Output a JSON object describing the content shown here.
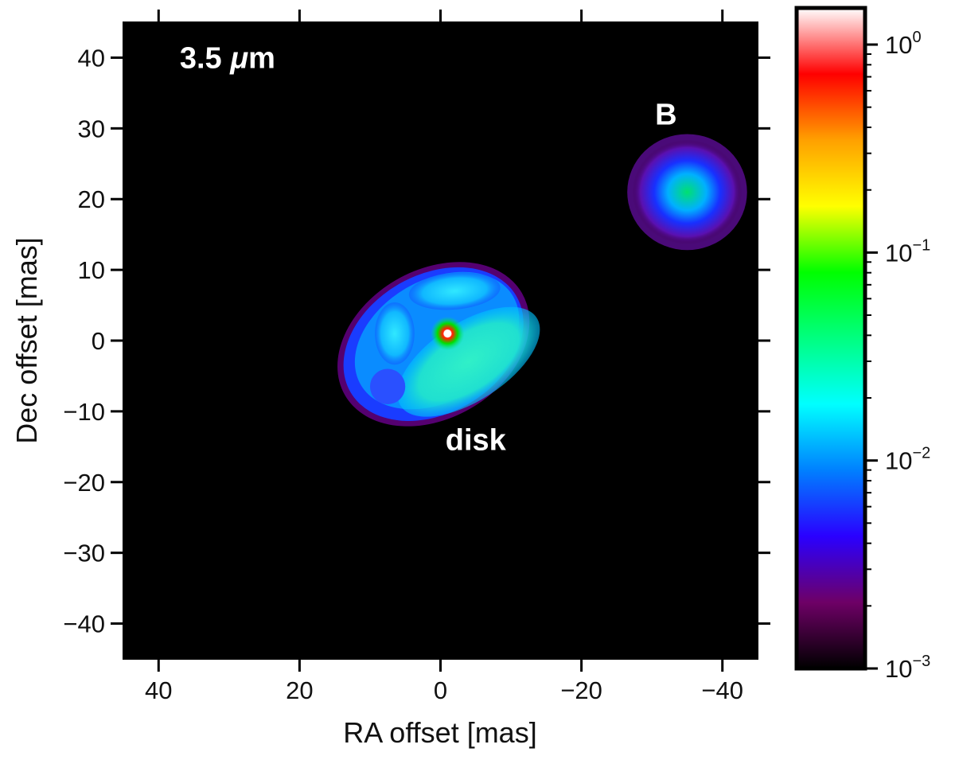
{
  "chart_data": {
    "type": "heatmap",
    "title": "",
    "xlabel": "RA offset [mas]",
    "ylabel": "Dec offset [mas]",
    "xlim": [
      45,
      -45
    ],
    "ylim": [
      -45,
      45
    ],
    "x_ticks": [
      40,
      20,
      0,
      -20,
      -40
    ],
    "x_tick_labels": [
      "40",
      "20",
      "0",
      "−20",
      "−40"
    ],
    "y_ticks": [
      40,
      30,
      20,
      10,
      0,
      -10,
      -20,
      -30,
      -40
    ],
    "y_tick_labels": [
      "40",
      "30",
      "20",
      "10",
      "0",
      "−10",
      "−20",
      "−30",
      "−40"
    ],
    "background": "#000000",
    "annotations": [
      {
        "text": "3.5",
        "unit": "μm",
        "x": 37,
        "y": 40
      },
      {
        "text": "B",
        "x": -32,
        "y": 32
      },
      {
        "text": "disk",
        "x": -5,
        "y": -14
      }
    ],
    "colorbar": {
      "scale": "log",
      "range": [
        0.001,
        1.5
      ],
      "ticks": [
        {
          "base": "10",
          "exponent": "0",
          "value": 1
        },
        {
          "base": "10",
          "exponent": "−1",
          "value": 0.1
        },
        {
          "base": "10",
          "exponent": "−2",
          "value": 0.01
        },
        {
          "base": "10",
          "exponent": "−3",
          "value": 0.001
        }
      ],
      "colormap": [
        "#000000",
        "#6e0066",
        "#2a00ff",
        "#0080ff",
        "#00ffff",
        "#00ff80",
        "#00ff00",
        "#ffff00",
        "#ffa000",
        "#ff0000",
        "#ffffff"
      ]
    },
    "sources": [
      {
        "name": "central star",
        "x": -1,
        "y": 1,
        "peak": 1.0
      },
      {
        "name": "B",
        "x": -35,
        "y": 21,
        "peak": 0.05
      },
      {
        "name": "disk",
        "x": 0,
        "y": 0,
        "peak": 0.02
      }
    ]
  }
}
